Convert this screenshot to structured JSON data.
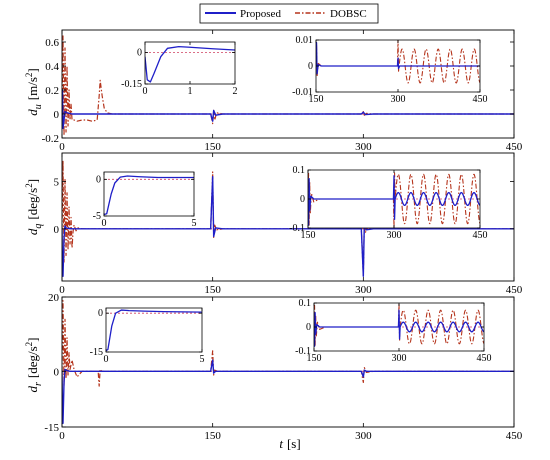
{
  "colors": {
    "proposed": "#1f1fc8",
    "dobsc": "#b5341c",
    "zero_line": "#d04060",
    "axis": "#000000"
  },
  "legend": {
    "proposed": "Proposed",
    "dobsc": "DOBSC"
  },
  "xlabel": {
    "var": "t",
    "unit": "[s]"
  },
  "chart_data": [
    {
      "type": "line",
      "id": "du",
      "ylabel": {
        "sym": "d",
        "sub": "u",
        "unit": "[m/s",
        "pow": "2",
        "close": "]"
      },
      "xlim": [
        0,
        450
      ],
      "ylim": [
        -0.2,
        0.7
      ],
      "xticks": [
        0,
        150,
        300,
        450
      ],
      "xtick_labels": [
        "0",
        "150",
        "300",
        "450"
      ],
      "yticks": [
        -0.2,
        0,
        0.2,
        0.4,
        0.6
      ],
      "ytick_labels": [
        "-0.2",
        "0",
        "0.2",
        "0.4",
        "0.6"
      ],
      "series": [
        {
          "name": "DOBSC",
          "x": [
            0,
            1,
            2,
            3,
            4,
            5,
            6,
            7,
            8,
            9,
            10,
            12,
            15,
            20,
            25,
            30,
            35,
            37,
            38,
            40,
            42,
            45,
            50,
            148,
            150,
            151,
            152,
            154,
            160,
            298,
            300,
            301,
            303,
            310,
            450
          ],
          "y": [
            0,
            0.65,
            -0.18,
            0.55,
            -0.15,
            0.4,
            -0.1,
            0.2,
            -0.05,
            0.08,
            -0.05,
            -0.05,
            -0.06,
            -0.05,
            -0.05,
            -0.06,
            -0.05,
            0.15,
            0.28,
            0.15,
            0.05,
            0.01,
            0,
            0,
            -0.08,
            0.03,
            -0.05,
            0.01,
            0,
            0,
            0.02,
            -0.01,
            0.005,
            0,
            0
          ]
        },
        {
          "name": "Proposed",
          "x": [
            0,
            0.5,
            1,
            2,
            3,
            5,
            10,
            148,
            150,
            151,
            153,
            160,
            298,
            300,
            302,
            310,
            450
          ],
          "y": [
            0,
            0.2,
            -0.12,
            -0.05,
            0.02,
            0.01,
            0,
            0,
            -0.06,
            0.03,
            -0.01,
            0,
            0,
            0.015,
            -0.005,
            0,
            0
          ]
        }
      ],
      "insets": [
        {
          "xlim": [
            0,
            2
          ],
          "ylim": [
            -0.15,
            0.05
          ],
          "xticks": [
            0,
            1,
            2
          ],
          "xtick_labels": [
            "0",
            "1",
            "2"
          ],
          "yticks": [
            -0.15,
            0
          ],
          "ytick_labels": [
            "-0.15",
            "0"
          ],
          "series": [
            {
              "name": "Proposed",
              "x": [
                0,
                0.05,
                0.12,
                0.2,
                0.35,
                0.5,
                0.75,
                1.0,
                1.5,
                2.0
              ],
              "y": [
                -0.02,
                -0.13,
                -0.14,
                -0.1,
                -0.02,
                0.02,
                0.028,
                0.025,
                0.018,
                0.012
              ]
            }
          ]
        },
        {
          "xlim": [
            150,
            450
          ],
          "ylim": [
            -0.01,
            0.01
          ],
          "xticks": [
            150,
            300,
            450
          ],
          "xtick_labels": [
            "150",
            "300",
            "450"
          ],
          "yticks": [
            -0.01,
            0,
            0.01
          ],
          "ytick_labels": [
            "-0.01",
            "0",
            "0.01"
          ],
          "series": [
            {
              "name": "DOBSC",
              "wave": {
                "start": 302,
                "end": 450,
                "amp": 0.0065,
                "period": 22
              },
              "x": [
                150,
                151,
                152,
                154,
                160,
                299,
                300,
                301,
                302
              ],
              "y": [
                0,
                0.008,
                -0.004,
                0.001,
                0,
                0,
                0.01,
                -0.002,
                0
              ]
            },
            {
              "name": "Proposed",
              "x": [
                150,
                151,
                152,
                154,
                160,
                299,
                300,
                301,
                303,
                450
              ],
              "y": [
                0,
                0.009,
                -0.003,
                0.0005,
                0,
                0,
                0.003,
                -0.001,
                0,
                0
              ]
            }
          ]
        }
      ]
    },
    {
      "type": "line",
      "id": "dq",
      "ylabel": {
        "sym": "d",
        "sub": "q",
        "unit": "[deg/s",
        "pow": "2",
        "close": "]"
      },
      "xlim": [
        0,
        450
      ],
      "ylim": [
        -5.5,
        8.0
      ],
      "xticks": [
        0,
        150,
        300,
        450
      ],
      "xtick_labels": [
        "0",
        "150",
        "300",
        "450"
      ],
      "yticks": [
        0,
        5
      ],
      "ytick_labels": [
        "0",
        "5"
      ],
      "series": [
        {
          "name": "DOBSC",
          "x": [
            0,
            1,
            2,
            3,
            4,
            5,
            6,
            7,
            8,
            9,
            10,
            11,
            12,
            14,
            16,
            20,
            148,
            150,
            151,
            152,
            154,
            160,
            298,
            300,
            301,
            302,
            304,
            310,
            450
          ],
          "y": [
            0,
            7.2,
            -3.5,
            5.2,
            -2.8,
            3.8,
            -2.2,
            2.3,
            -1.6,
            1.2,
            -2.0,
            -0.3,
            0.4,
            -0.2,
            0.1,
            0,
            0,
            6.0,
            -0.9,
            0.4,
            -0.1,
            0,
            0,
            -5.0,
            1.0,
            -0.4,
            0.1,
            0,
            0
          ]
        },
        {
          "name": "Proposed",
          "x": [
            0,
            0.5,
            1,
            2,
            3,
            4,
            6,
            10,
            148,
            150,
            151,
            153,
            160,
            298,
            300,
            301,
            303,
            310,
            450
          ],
          "y": [
            0,
            -4.5,
            -5.0,
            -1.0,
            0.3,
            0.1,
            0.05,
            0,
            0,
            5.5,
            -0.8,
            0.1,
            0,
            0,
            -5.0,
            0.7,
            -0.1,
            0,
            0
          ]
        }
      ],
      "insets": [
        {
          "xlim": [
            0,
            5
          ],
          "ylim": [
            -5,
            1
          ],
          "xticks": [
            0,
            5
          ],
          "xtick_labels": [
            "0",
            "5"
          ],
          "yticks": [
            -5,
            0
          ],
          "ytick_labels": [
            "-5",
            "0"
          ],
          "series": [
            {
              "name": "Proposed",
              "x": [
                0,
                0.15,
                0.4,
                0.6,
                0.9,
                1.3,
                2.0,
                3.0,
                5.0
              ],
              "y": [
                -4.8,
                -4.7,
                -2.0,
                -0.5,
                0.3,
                0.45,
                0.35,
                0.25,
                0.25
              ]
            }
          ]
        },
        {
          "xlim": [
            150,
            450
          ],
          "ylim": [
            -0.1,
            0.1
          ],
          "xticks": [
            150,
            300,
            450
          ],
          "xtick_labels": [
            "150",
            "300",
            "450"
          ],
          "yticks": [
            -0.1,
            0,
            0.1
          ],
          "ytick_labels": [
            "-0.1",
            "0",
            "0.1"
          ],
          "series": [
            {
              "name": "DOBSC",
              "wave": {
                "start": 302,
                "end": 450,
                "amp": 0.085,
                "period": 22
              },
              "x": [
                150,
                151,
                152,
                153,
                154,
                156,
                160,
                170,
                299,
                300,
                301,
                302
              ],
              "y": [
                0,
                0.09,
                -0.09,
                0.06,
                -0.05,
                0.02,
                -0.01,
                0,
                0,
                -0.1,
                0.09,
                0
              ]
            },
            {
              "name": "Proposed",
              "wave": {
                "start": 302,
                "end": 450,
                "amp": 0.022,
                "period": 22
              },
              "x": [
                150,
                151,
                152,
                153,
                155,
                160,
                299,
                300,
                301,
                302
              ],
              "y": [
                0,
                -0.09,
                0.07,
                -0.04,
                0.01,
                0,
                0,
                0.08,
                -0.07,
                0
              ]
            }
          ]
        }
      ]
    },
    {
      "type": "line",
      "id": "dr",
      "ylabel": {
        "sym": "d",
        "sub": "r",
        "unit": "[deg/s",
        "pow": "2",
        "close": "]"
      },
      "xlim": [
        0,
        450
      ],
      "ylim": [
        -15,
        20
      ],
      "xticks": [
        0,
        150,
        300,
        450
      ],
      "xtick_labels": [
        "0",
        "150",
        "300",
        "450"
      ],
      "yticks": [
        -15,
        0,
        20
      ],
      "ytick_labels": [
        "-15",
        "0",
        "20"
      ],
      "series": [
        {
          "name": "DOBSC",
          "x": [
            0,
            1,
            2,
            3,
            4,
            5,
            6,
            7,
            8,
            10,
            12,
            15,
            20,
            36,
            37,
            38,
            40,
            148,
            150,
            151,
            152,
            155,
            298,
            300,
            301,
            303,
            310,
            450
          ],
          "y": [
            0,
            19,
            -4,
            14,
            -2,
            9,
            -1,
            5,
            0.5,
            3,
            0.5,
            -1.5,
            0,
            0,
            -4,
            0.5,
            0,
            0,
            5.5,
            -1,
            0.3,
            0,
            0,
            -3,
            1,
            -0.3,
            0,
            0
          ]
        },
        {
          "name": "Proposed",
          "x": [
            0,
            0.5,
            1,
            2,
            3,
            5,
            8,
            148,
            150,
            151,
            153,
            298,
            300,
            301,
            303,
            450
          ],
          "y": [
            0,
            -12,
            -14,
            -3,
            0.5,
            0.2,
            0,
            0,
            3,
            -0.5,
            0,
            0,
            -1.5,
            0.3,
            0,
            0
          ]
        }
      ],
      "insets": [
        {
          "xlim": [
            0,
            5
          ],
          "ylim": [
            -15,
            2
          ],
          "xticks": [
            0,
            5
          ],
          "xtick_labels": [
            "0",
            "5"
          ],
          "yticks": [
            -15,
            0
          ],
          "ytick_labels": [
            "-15",
            "0"
          ],
          "series": [
            {
              "name": "Proposed",
              "x": [
                0,
                0.1,
                0.3,
                0.5,
                0.8,
                1.2,
                2.0,
                3.0,
                5.0
              ],
              "y": [
                -14.5,
                -14,
                -5,
                0,
                1.2,
                1.0,
                0.8,
                0.6,
                0.4
              ]
            }
          ]
        },
        {
          "xlim": [
            150,
            450
          ],
          "ylim": [
            -0.1,
            0.1
          ],
          "xticks": [
            150,
            300,
            450
          ],
          "xtick_labels": [
            "150",
            "300",
            "450"
          ],
          "yticks": [
            -0.1,
            0,
            0.1
          ],
          "ytick_labels": [
            "-0.1",
            "0",
            "0.1"
          ],
          "series": [
            {
              "name": "DOBSC",
              "wave": {
                "start": 302,
                "end": 450,
                "amp": 0.07,
                "period": 22
              },
              "x": [
                150,
                151,
                152,
                153,
                154,
                156,
                160,
                170,
                299,
                300,
                301,
                302
              ],
              "y": [
                0,
                0.09,
                -0.08,
                0.05,
                -0.04,
                0.02,
                -0.01,
                0,
                0,
                0.1,
                -0.06,
                0
              ]
            },
            {
              "name": "Proposed",
              "wave": {
                "start": 302,
                "end": 450,
                "amp": 0.02,
                "period": 22
              },
              "x": [
                150,
                151,
                152,
                153,
                155,
                160,
                299,
                300,
                301,
                302
              ],
              "y": [
                0,
                -0.08,
                0.06,
                -0.03,
                0.01,
                0,
                0,
                0.07,
                -0.05,
                0
              ]
            }
          ]
        }
      ]
    }
  ]
}
